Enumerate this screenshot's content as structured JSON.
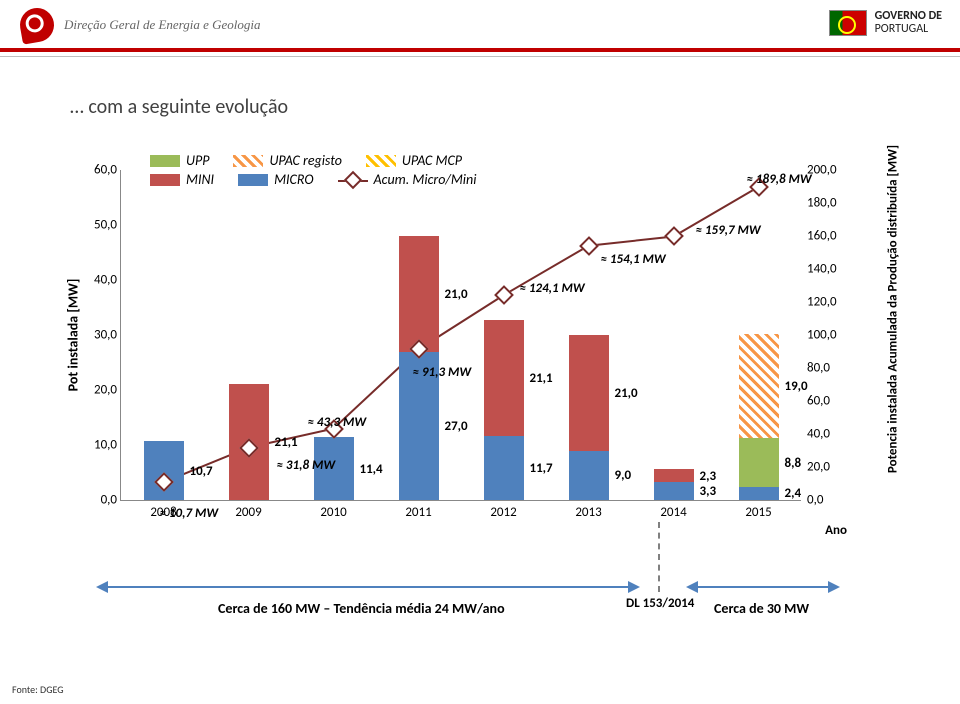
{
  "header": {
    "org": "Direção Geral de Energia e Geologia",
    "gov1": "GOVERNO DE",
    "gov2": "PORTUGAL"
  },
  "title": "… com a seguinte evolução",
  "chart": {
    "type": "stacked-bar+line",
    "ylabel": "Pot instalada [MW]",
    "y2label": "Potencia instalada Acumulada da Produção distribuída [MW]",
    "xlabel": "Ano",
    "ymax": 60,
    "y2max": 200,
    "yticks": [
      "0,0",
      "10,0",
      "20,0",
      "30,0",
      "40,0",
      "50,0",
      "60,0"
    ],
    "y2ticks": [
      "0,0",
      "20,0",
      "40,0",
      "60,0",
      "80,0",
      "100,0",
      "120,0",
      "140,0",
      "160,0",
      "180,0",
      "200,0"
    ],
    "years": [
      "2008",
      "2009",
      "2010",
      "2011",
      "2012",
      "2013",
      "2014",
      "2015"
    ],
    "legend": {
      "upp": "UPP",
      "upacr": "UPAC registo",
      "upacm": "UPAC MCP",
      "mini": "MINI",
      "micro": "MICRO",
      "acum": "Acum. Micro/Mini"
    },
    "bars": [
      {
        "micro": 10.7,
        "mini": 0,
        "upp": 0,
        "upacr": 0,
        "upacm": 0,
        "labels": {
          "micro": "10,7"
        }
      },
      {
        "micro": 0,
        "mini": 21.1,
        "upp": 0,
        "upacr": 0,
        "upacm": 0,
        "labels": {
          "mini": "21,1"
        }
      },
      {
        "micro": 11.4,
        "mini": 0,
        "upp": 0,
        "upacr": 0,
        "upacm": 0,
        "labels": {
          "micro": "11,4"
        }
      },
      {
        "micro": 27.0,
        "mini": 21.0,
        "upp": 0,
        "upacr": 0,
        "upacm": 0,
        "labels": {
          "micro": "27,0",
          "mini": "21,0"
        }
      },
      {
        "micro": 11.7,
        "mini": 21.1,
        "upp": 0,
        "upacr": 0,
        "upacm": 0,
        "labels": {
          "micro": "11,7",
          "mini": "21,1"
        }
      },
      {
        "micro": 9.0,
        "mini": 21.0,
        "upp": 0,
        "upacr": 0,
        "upacm": 0,
        "labels": {
          "micro": "9,0",
          "mini": "21,0"
        }
      },
      {
        "micro": 3.3,
        "mini": 2.3,
        "upp": 0,
        "upacr": 0,
        "upacm": 0,
        "labels": {
          "micro": "3,3",
          "mini": "2,3"
        }
      },
      {
        "micro": 2.4,
        "mini": 0,
        "upp": 8.8,
        "upacr": 19.0,
        "upacm": 0,
        "labels": {
          "micro": "2,4",
          "upp": "8,8",
          "upacr": "19,0"
        }
      }
    ],
    "cum": [
      10.7,
      31.8,
      43.3,
      91.3,
      124.1,
      154.1,
      159.7,
      189.8
    ],
    "annots": [
      {
        "text": "≈ 10,7 MW",
        "year": 0,
        "val": 10.7,
        "ox": -4,
        "oy": 24
      },
      {
        "text": "≈ 31,8 MW",
        "year": 1,
        "val": 31.8,
        "ox": 28,
        "oy": 10
      },
      {
        "text": "≈ 43,3 MW",
        "year": 2,
        "val": 43.3,
        "ox": -26,
        "oy": -14
      },
      {
        "text": "≈ 91,3 MW",
        "year": 3,
        "val": 91.3,
        "ox": -6,
        "oy": 16
      },
      {
        "text": "≈ 124,1 MW",
        "year": 4,
        "val": 124.1,
        "ox": 16,
        "oy": -14
      },
      {
        "text": "≈ 154,1 MW",
        "year": 5,
        "val": 154.1,
        "ox": 12,
        "oy": 6
      },
      {
        "text": "≈ 159,7 MW",
        "year": 6,
        "val": 159.7,
        "ox": 22,
        "oy": -13
      },
      {
        "text": "≈ 189,8 MW",
        "year": 7,
        "val": 189.8,
        "ox": -12,
        "oy": -15
      }
    ]
  },
  "footer": {
    "left": "Cerca de 160 MW – Tendência média 24 MW/ano",
    "right": "Cerca de 30 MW",
    "dl": "DL 153/2014",
    "source": "Fonte: DGEG"
  }
}
